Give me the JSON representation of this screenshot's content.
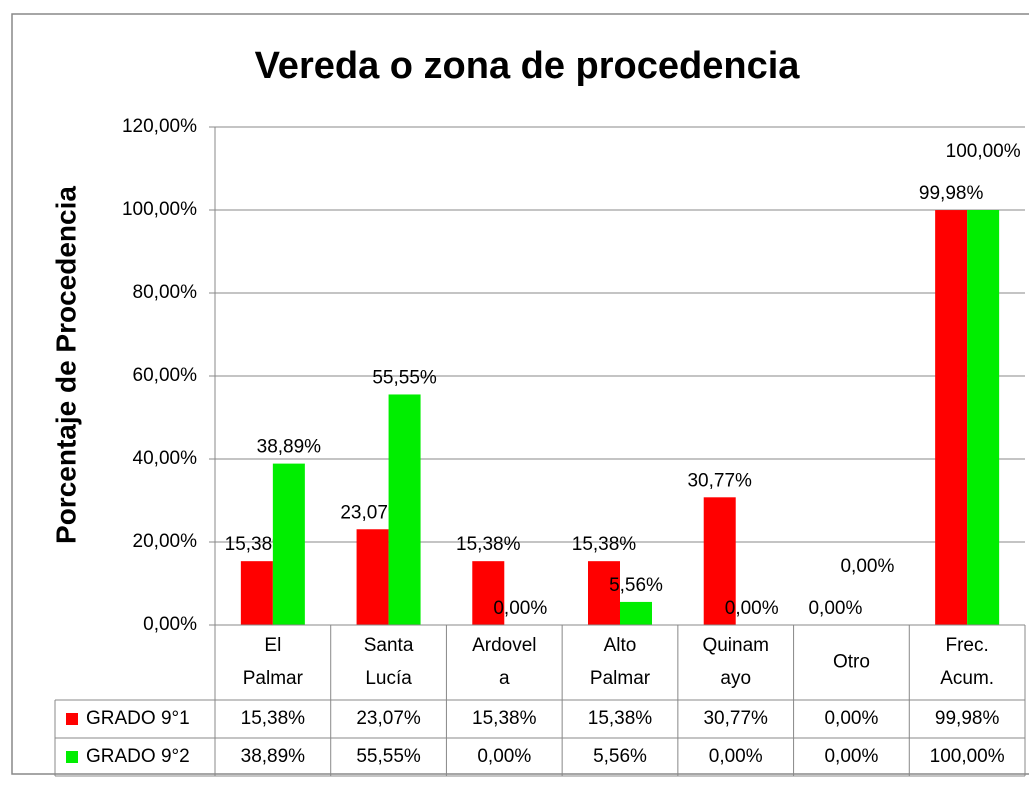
{
  "chart_data": {
    "type": "bar",
    "title": "Vereda o zona de procedencia",
    "y_label": "Porcentaje de  Procedencia",
    "categories": [
      [
        "El",
        "Palmar"
      ],
      [
        "Santa",
        "Lucía"
      ],
      [
        "Ardovel",
        "a"
      ],
      [
        "Alto",
        "Palmar"
      ],
      [
        "Quinam",
        "ayo"
      ],
      [
        "Otro"
      ],
      [
        "Frec.",
        "Acum."
      ]
    ],
    "series": [
      {
        "name": "GRADO 9°1",
        "color": "#ff0000",
        "values": [
          15.38,
          23.07,
          15.38,
          15.38,
          30.77,
          0,
          99.98
        ],
        "value_labels": [
          "15,38%",
          "23,07%",
          "15,38%",
          "15,38%",
          "30,77%",
          "0,00%",
          "99,98%"
        ]
      },
      {
        "name": "GRADO 9°2",
        "color": "#00ee00",
        "values": [
          38.89,
          55.55,
          0,
          5.56,
          0,
          0,
          100
        ],
        "value_labels": [
          "38,89%",
          "55,55%",
          "0,00%",
          "5,56%",
          "0,00%",
          "0,00%",
          "100,00%"
        ]
      }
    ],
    "ylim": [
      0,
      120
    ],
    "yticks": [
      {
        "value": 0,
        "label": "0,00%"
      },
      {
        "value": 20,
        "label": "20,00%"
      },
      {
        "value": 40,
        "label": "40,00%"
      },
      {
        "value": 60,
        "label": "60,00%"
      },
      {
        "value": 80,
        "label": "80,00%"
      },
      {
        "value": 100,
        "label": "100,00%"
      },
      {
        "value": 120,
        "label": "120,00%"
      }
    ],
    "grid": true,
    "data_table": true
  }
}
